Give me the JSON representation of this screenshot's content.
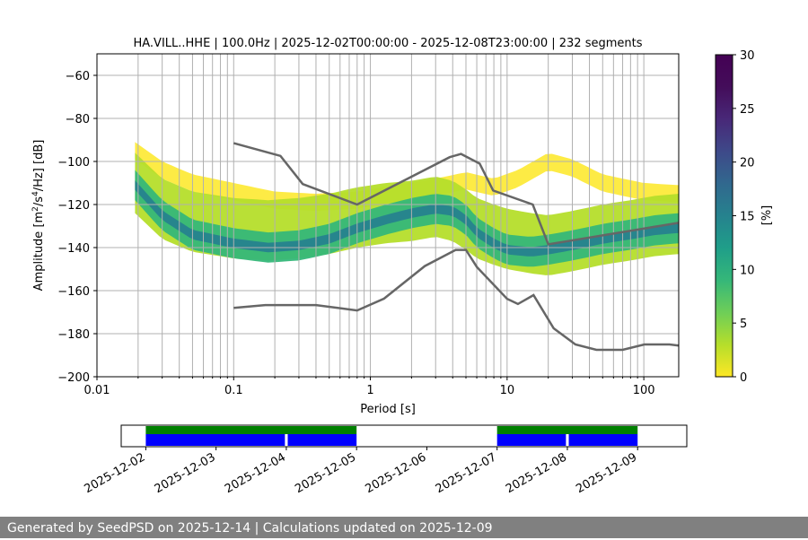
{
  "chart_data": [
    {
      "type": "heatmap",
      "title": "HA.VILL..HHE | 100.0Hz | 2025-12-02T00:00:00 - 2025-12-08T23:00:00 | 232 segments",
      "xlabel": "Period [s]",
      "ylabel_main": "Amplitude [m",
      "ylabel_sup1": "2",
      "ylabel_mid": "/s",
      "ylabel_sup2": "4",
      "ylabel_end": "/Hz] [dB]",
      "x_scale": "log",
      "xlim": [
        0.01,
        180
      ],
      "ylim": [
        -200,
        -50
      ],
      "x_ticks": [
        0.01,
        0.1,
        1,
        10,
        100
      ],
      "x_tick_labels": [
        "0.01",
        "0.1",
        "1",
        "10",
        "100"
      ],
      "y_ticks": [
        -200,
        -180,
        -160,
        -140,
        -120,
        -100,
        -80,
        -60
      ],
      "y_tick_labels": [
        "−200",
        "−180",
        "−160",
        "−140",
        "−120",
        "−100",
        "−80",
        "−60"
      ],
      "grid": true,
      "colorbar": {
        "label": "[%]",
        "range": [
          0,
          30
        ],
        "ticks": [
          0,
          5,
          10,
          15,
          20,
          25,
          30
        ],
        "tick_labels": [
          "0",
          "5",
          "10",
          "15",
          "20",
          "25",
          "30"
        ],
        "colormap": "viridis_r"
      },
      "nhnm": {
        "name": "NHNM",
        "x": [
          0.1,
          0.22,
          0.32,
          0.8,
          3.8,
          4.6,
          6.3,
          7.9,
          15.4,
          20,
          180
        ],
        "y": [
          -91.5,
          -97.4,
          -110.5,
          -120,
          -98,
          -96.5,
          -101,
          -113.5,
          -120,
          -138.5,
          -128.5
        ]
      },
      "nlnm": {
        "name": "NLNM",
        "x": [
          0.1,
          0.17,
          0.4,
          0.8,
          1.26,
          2.5,
          4.2,
          5,
          6,
          10,
          12,
          15.6,
          21.9,
          31.6,
          45,
          70,
          101,
          154,
          180
        ],
        "y": [
          -168,
          -166.7,
          -166.7,
          -169.2,
          -163.7,
          -148.6,
          -141.1,
          -141.1,
          -149,
          -163.8,
          -166.2,
          -162.1,
          -177.5,
          -185,
          -187.5,
          -187.5,
          -185,
          -185,
          -185.5
        ]
      },
      "density_bands": [
        {
          "name": "core",
          "level": 16,
          "x": [
            0.019,
            0.03,
            0.05,
            0.1,
            0.18,
            0.3,
            0.5,
            0.8,
            1.3,
            2,
            3,
            4,
            5,
            6,
            8,
            10,
            15,
            20,
            30,
            50,
            80,
            120,
            180
          ],
          "y": [
            -111,
            -125,
            -134,
            -138,
            -140,
            -139,
            -136,
            -131,
            -127,
            -124,
            -122,
            -123,
            -127,
            -133,
            -138,
            -141,
            -142,
            -141,
            -139,
            -136,
            -134,
            -132,
            -131
          ],
          "halfwidth": 2.2
        },
        {
          "name": "main",
          "level": 8,
          "x": [
            0.019,
            0.03,
            0.05,
            0.1,
            0.18,
            0.3,
            0.5,
            0.8,
            1.3,
            2,
            3,
            4,
            5,
            6,
            8,
            10,
            15,
            20,
            30,
            50,
            80,
            120,
            180
          ],
          "y": [
            -111,
            -125,
            -134,
            -138,
            -140,
            -139,
            -136,
            -131,
            -127,
            -124,
            -122,
            -123,
            -127,
            -133,
            -138,
            -141,
            -142,
            -141,
            -139,
            -136,
            -134,
            -132,
            -131
          ],
          "halfwidth": 7
        },
        {
          "name": "spread",
          "level": 3,
          "x": [
            0.019,
            0.03,
            0.05,
            0.1,
            0.18,
            0.3,
            0.5,
            0.8,
            1.3,
            2,
            3,
            4,
            5,
            6,
            8,
            10,
            15,
            20,
            30,
            50,
            80,
            120,
            180
          ],
          "y": [
            -110,
            -122,
            -128,
            -131,
            -132,
            -131,
            -129,
            -126,
            -124,
            -123,
            -121,
            -123,
            -127,
            -131,
            -134,
            -136,
            -138,
            -139,
            -137,
            -134,
            -132,
            -130,
            -129
          ],
          "halfwidth": 14
        },
        {
          "name": "upper",
          "level": 1,
          "x": [
            0.019,
            0.03,
            0.05,
            0.1,
            0.2,
            0.4,
            0.8,
            1.5,
            3,
            5,
            8,
            12,
            20,
            30,
            50,
            100,
            180
          ],
          "y": [
            -95,
            -104,
            -110,
            -114,
            -118,
            -119,
            -118,
            -115,
            -112,
            -109,
            -112,
            -108,
            -100,
            -103,
            -110,
            -114,
            -115
          ],
          "halfwidth": 4
        }
      ],
      "data_availability": {
        "x_ticks": [
          "2025-12-02",
          "2025-12-03",
          "2025-12-04",
          "2025-12-05",
          "2025-12-06",
          "2025-12-07",
          "2025-12-08",
          "2025-12-09"
        ],
        "xlim_days": [
          2.0,
          9.7
        ],
        "green_spans": [
          [
            2.0,
            5.0
          ],
          [
            7.0,
            9.0
          ]
        ],
        "blue_spans": [
          [
            2.0,
            3.98
          ],
          [
            4.02,
            5.0
          ],
          [
            7.0,
            7.98
          ],
          [
            8.02,
            9.0
          ]
        ],
        "colors": {
          "green": "#008000",
          "blue": "#0000ff"
        }
      }
    }
  ],
  "footer": {
    "text": "Generated by SeedPSD on 2025-12-14 | Calculations updated on 2025-12-09"
  }
}
